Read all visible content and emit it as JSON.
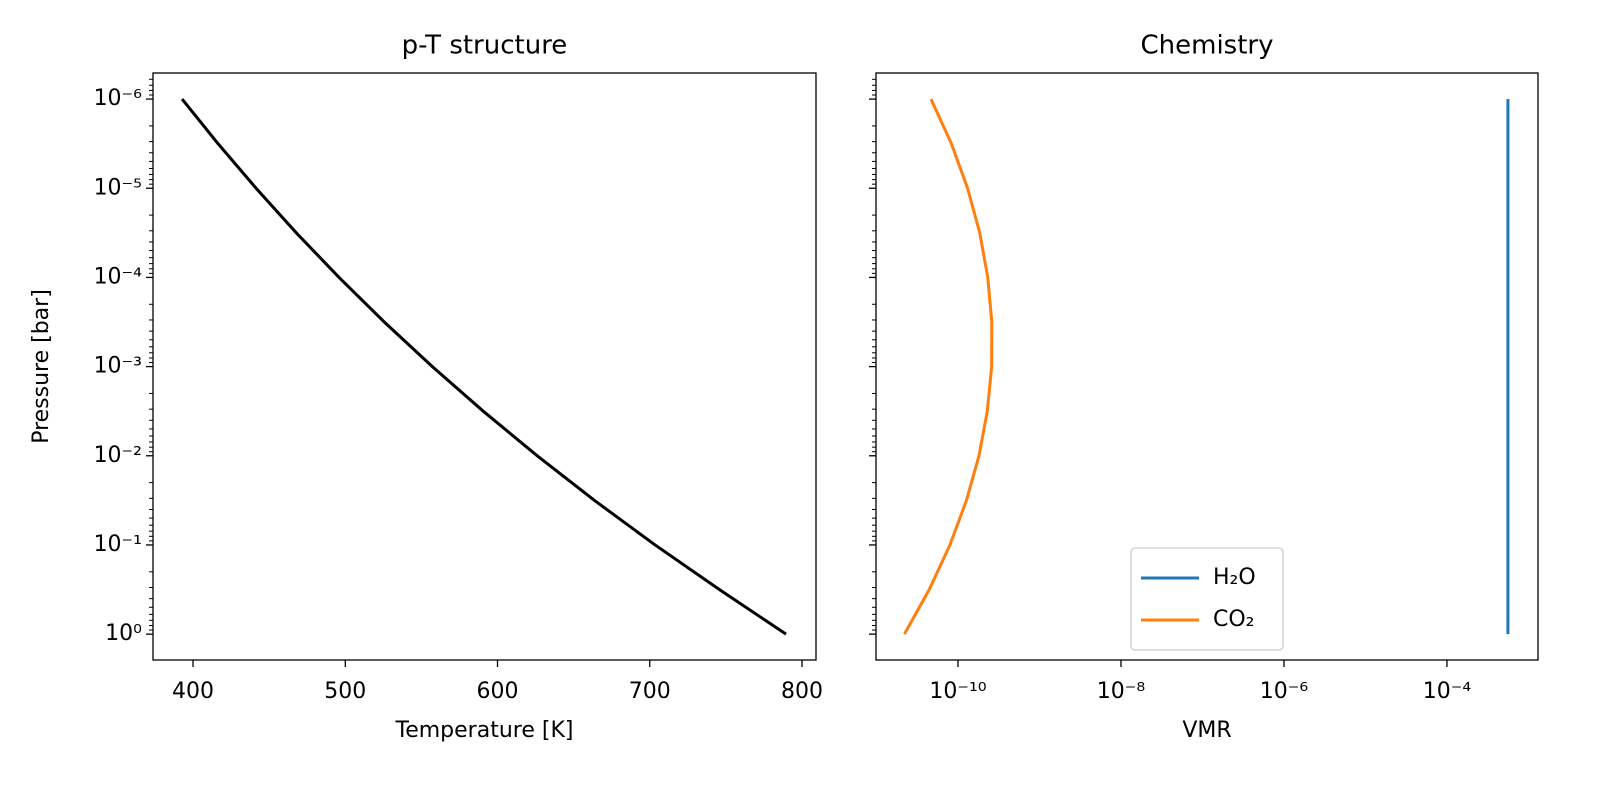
{
  "chart_data": [
    {
      "type": "line",
      "title": "p-T structure",
      "x_label": "Temperature [K]",
      "y_label": "Pressure [bar]",
      "xscale": "linear",
      "yscale": "log",
      "xlim": [
        373.7,
        809.2
      ],
      "xticks": [
        400,
        500,
        600,
        700,
        800
      ],
      "ylim": [
        1.95,
        5.1e-07
      ],
      "yticks": [
        {
          "value": 1e-06,
          "label": "10⁻⁶"
        },
        {
          "value": 1e-05,
          "label": "10⁻⁵"
        },
        {
          "value": 0.0001,
          "label": "10⁻⁴"
        },
        {
          "value": 0.001,
          "label": "10⁻³"
        },
        {
          "value": 0.01,
          "label": "10⁻²"
        },
        {
          "value": 0.1,
          "label": "10⁻¹"
        },
        {
          "value": 1,
          "label": "10⁰"
        }
      ],
      "series": [
        {
          "color": "#000000",
          "x": [
            392.8,
            416.4,
            441.4,
            467.8,
            495.9,
            525.6,
            557.2,
            590.6,
            626.1,
            663.6,
            703.5,
            745.7,
            789.5
          ],
          "y": [
            1e-06,
            3.16e-06,
            1e-05,
            3.16e-05,
            0.0001,
            0.000316,
            0.001,
            0.00316,
            0.01,
            0.0316,
            0.1,
            0.316,
            1
          ]
        }
      ]
    },
    {
      "type": "line",
      "title": "Chemistry",
      "x_label": "VMR",
      "xscale": "log",
      "yscale": "log",
      "xlim": [
        9.86e-12,
        0.00131
      ],
      "xticks": [
        {
          "value": 1e-10,
          "label": "10⁻¹⁰"
        },
        {
          "value": 1e-08,
          "label": "10⁻⁸"
        },
        {
          "value": 1e-06,
          "label": "10⁻⁶"
        },
        {
          "value": 0.0001,
          "label": "10⁻⁴"
        }
      ],
      "ylim": [
        1.95,
        5.1e-07
      ],
      "yticks": [
        1e-06,
        1e-05,
        0.0001,
        0.001,
        0.01,
        0.1,
        1
      ],
      "legend": "lower center",
      "series": [
        {
          "name": "H₂O",
          "color": "#1f77b4",
          "x": [
            0.00056,
            0.00056,
            0.00056,
            0.00056,
            0.00056,
            0.00056,
            0.00056,
            0.00056,
            0.00056,
            0.00056,
            0.00056,
            0.00056,
            0.00056
          ],
          "y": [
            1e-06,
            3.16e-06,
            1e-05,
            3.16e-05,
            0.0001,
            0.000316,
            0.001,
            0.00316,
            0.01,
            0.0316,
            0.1,
            0.316,
            1
          ]
        },
        {
          "name": "CO₂",
          "color": "#ff7f0e",
          "x": [
            4.67e-11,
            8.3e-11,
            1.31e-10,
            1.85e-10,
            2.32e-10,
            2.6e-10,
            2.59e-10,
            2.29e-10,
            1.81e-10,
            1.27e-10,
            7.96e-11,
            4.44e-11,
            2.2e-11
          ],
          "y": [
            1e-06,
            3.16e-06,
            1e-05,
            3.16e-05,
            0.0001,
            0.000316,
            0.001,
            0.00316,
            0.01,
            0.0316,
            0.1,
            0.316,
            1
          ]
        }
      ]
    }
  ]
}
